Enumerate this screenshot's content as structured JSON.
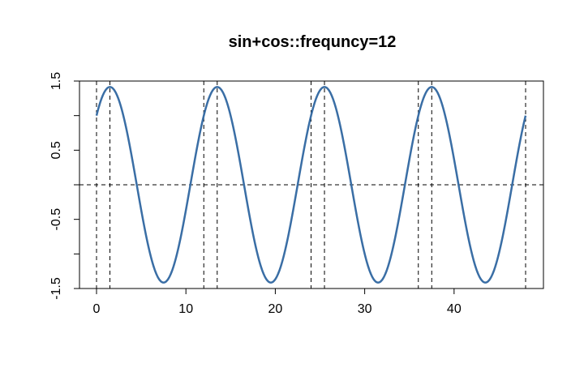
{
  "chart_data": {
    "type": "line",
    "title": "sin+cos::frequncy=12",
    "xlabel": "",
    "ylabel": "",
    "function": "sin(2*pi*x/12) + cos(2*pi*x/12)",
    "period": 12,
    "x_range": [
      0,
      48
    ],
    "xlim": [
      0,
      48
    ],
    "ylim": [
      -1.5,
      1.5
    ],
    "x_ticks": [
      0,
      10,
      20,
      30,
      40
    ],
    "x_tick_labels": [
      "0",
      "10",
      "20",
      "30",
      "40"
    ],
    "y_ticks": [
      -1.5,
      -1.0,
      -0.5,
      0.0,
      0.5,
      1.0,
      1.5
    ],
    "y_tick_labels": [
      "-1.5",
      "",
      "-0.5",
      "",
      "0.5",
      "",
      "1.5"
    ],
    "series": [
      {
        "color": "#3a6ea5"
      }
    ],
    "reference_lines": {
      "horizontal": [
        0
      ],
      "vertical": [
        0,
        1.5,
        12,
        13.5,
        24,
        25.5,
        36,
        37.5,
        48
      ]
    },
    "grid": false,
    "legend": "none"
  }
}
